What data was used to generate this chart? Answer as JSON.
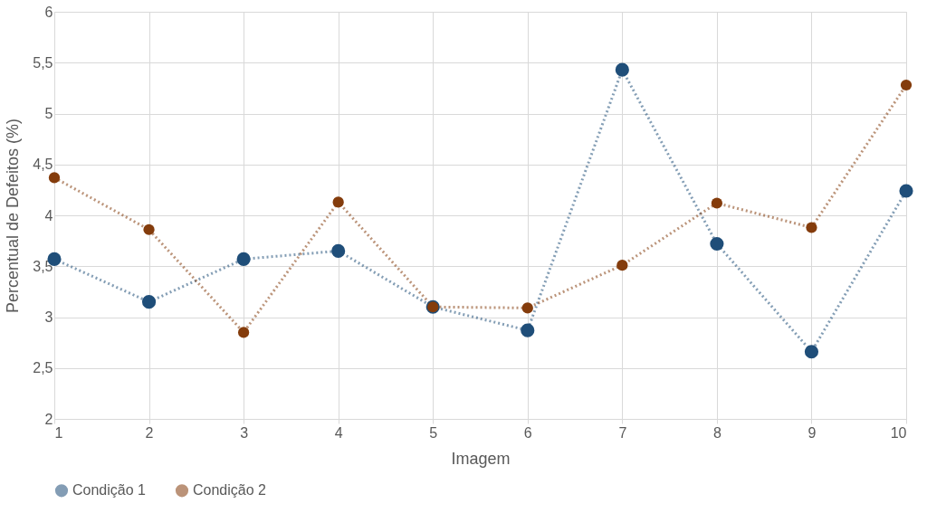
{
  "chart_data": {
    "type": "line",
    "xlabel": "Imagem",
    "ylabel": "Percentual de Defeitos (%)",
    "x": [
      1,
      2,
      3,
      4,
      5,
      6,
      7,
      8,
      9,
      10
    ],
    "xlim": [
      1,
      10
    ],
    "xticks": [
      1,
      2,
      3,
      4,
      5,
      6,
      7,
      8,
      9,
      10
    ],
    "ylim": [
      2,
      6
    ],
    "yticks": [
      {
        "value": 2,
        "label": "2"
      },
      {
        "value": 2.5,
        "label": "2,5"
      },
      {
        "value": 3,
        "label": "3"
      },
      {
        "value": 3.5,
        "label": "3,5"
      },
      {
        "value": 4,
        "label": "4"
      },
      {
        "value": 4.5,
        "label": "4,5"
      },
      {
        "value": 5,
        "label": "5"
      },
      {
        "value": 5.5,
        "label": "5,5"
      },
      {
        "value": 6,
        "label": "6"
      }
    ],
    "grid": true,
    "legend": "bottom",
    "marker": "circle",
    "line_style": "dotted",
    "series": [
      {
        "name": "Condição 1",
        "color": "#1f4e79",
        "values": [
          3.57,
          3.15,
          3.57,
          3.65,
          3.1,
          2.87,
          5.43,
          3.72,
          2.66,
          4.24
        ]
      },
      {
        "name": "Condição 2",
        "color": "#843c0c",
        "values": [
          4.37,
          3.86,
          2.85,
          4.13,
          3.1,
          3.09,
          3.51,
          4.12,
          3.88,
          5.28
        ]
      }
    ]
  }
}
